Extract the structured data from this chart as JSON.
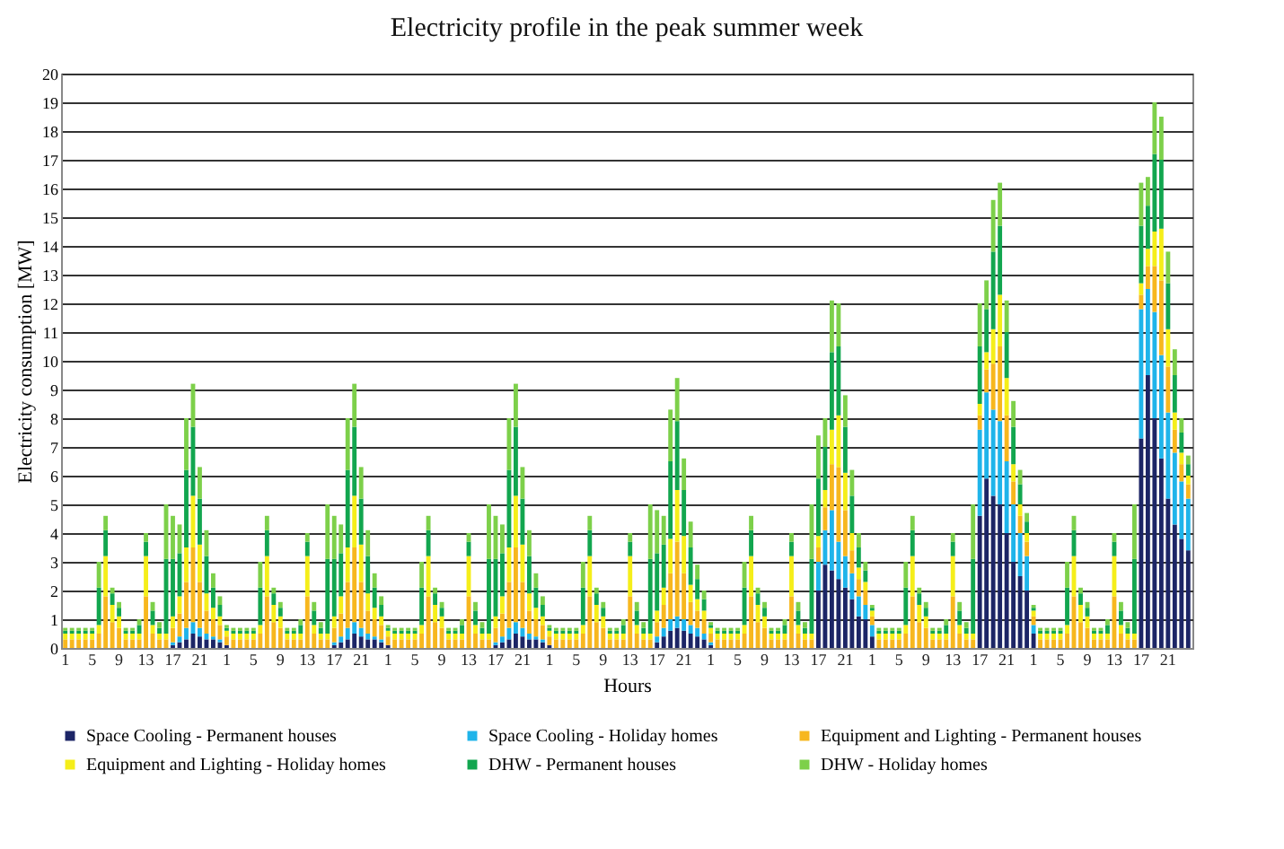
{
  "chart_data": {
    "type": "bar",
    "stacked": true,
    "title": "Electricity profile in the peak summer week",
    "xlabel": "Hours",
    "ylabel": "Electricity consumption [MW]",
    "categories": [
      "1",
      null,
      null,
      null,
      "5",
      null,
      null,
      null,
      "9",
      null,
      null,
      null,
      "13",
      null,
      null,
      null,
      "17",
      null,
      null,
      null,
      "21",
      null,
      null,
      null,
      "1",
      null,
      null,
      null,
      "5",
      null,
      null,
      null,
      "9",
      null,
      null,
      null,
      "13",
      null,
      null,
      null,
      "17",
      null,
      null,
      null,
      "21",
      null,
      null,
      null,
      "1",
      null,
      null,
      null,
      "5",
      null,
      null,
      null,
      "9",
      null,
      null,
      null,
      "13",
      null,
      null,
      null,
      "17",
      null,
      null,
      null,
      "21",
      null,
      null,
      null,
      "1",
      null,
      null,
      null,
      "5",
      null,
      null,
      null,
      "9",
      null,
      null,
      null,
      "13",
      null,
      null,
      null,
      "17",
      null,
      null,
      null,
      "21",
      null,
      null,
      null,
      "1",
      null,
      null,
      null,
      "5",
      null,
      null,
      null,
      "9",
      null,
      null,
      null,
      "13",
      null,
      null,
      null,
      "17",
      null,
      null,
      null,
      "21",
      null,
      null,
      null,
      "1",
      null,
      null,
      null,
      "5",
      null,
      null,
      null,
      "9",
      null,
      null,
      null,
      "13",
      null,
      null,
      null,
      "17",
      null,
      null,
      null,
      "21",
      null,
      null,
      null,
      "1",
      null,
      null,
      null,
      "5",
      null,
      null,
      null,
      "9",
      null,
      null,
      null,
      "13",
      null,
      null,
      null,
      "17",
      null,
      null,
      null,
      "21",
      null,
      null,
      null
    ],
    "series": [
      {
        "name": "Space Cooling -  Permanent houses",
        "color": "#1c2566",
        "values": [
          0,
          0,
          0,
          0,
          0,
          0,
          0,
          0,
          0,
          0,
          0,
          0,
          0,
          0,
          0,
          0,
          0.1,
          0.2,
          0.3,
          0.5,
          0.4,
          0.3,
          0.3,
          0.2,
          0.1,
          0,
          0,
          0,
          0,
          0,
          0,
          0,
          0,
          0,
          0,
          0,
          0,
          0,
          0,
          0,
          0.1,
          0.2,
          0.3,
          0.5,
          0.4,
          0.3,
          0.3,
          0.2,
          0.1,
          0,
          0,
          0,
          0,
          0,
          0,
          0,
          0,
          0,
          0,
          0,
          0,
          0,
          0,
          0,
          0.1,
          0.2,
          0.3,
          0.5,
          0.4,
          0.3,
          0.3,
          0.2,
          0.1,
          0,
          0,
          0,
          0,
          0,
          0,
          0,
          0,
          0,
          0,
          0,
          0,
          0,
          0,
          0,
          0.2,
          0.4,
          0.6,
          0.7,
          0.6,
          0.5,
          0.4,
          0.3,
          0.1,
          0,
          0,
          0,
          0,
          0,
          0,
          0,
          0,
          0,
          0,
          0,
          0,
          0,
          0,
          0,
          2.0,
          2.9,
          2.7,
          2.4,
          2.1,
          1.7,
          1.1,
          1.0,
          0.4,
          0,
          0,
          0,
          0,
          0,
          0,
          0,
          0,
          0,
          0,
          0,
          0,
          0,
          0,
          0,
          4.6,
          5.9,
          5.3,
          5.0,
          4.0,
          3.0,
          2.5,
          2.0,
          0.5,
          0,
          0,
          0,
          0,
          0,
          0,
          0,
          0,
          0,
          0,
          0,
          0,
          0,
          0,
          0,
          7.3,
          9.5,
          8.0,
          6.6,
          5.2,
          4.3,
          3.8,
          3.4
        ]
      },
      {
        "name": "Space Cooling -  Holiday homes",
        "color": "#1fb4ea",
        "values": [
          0,
          0,
          0,
          0,
          0,
          0,
          0,
          0,
          0,
          0,
          0,
          0,
          0,
          0,
          0,
          0,
          0.1,
          0.2,
          0.4,
          0.4,
          0.3,
          0.2,
          0.1,
          0.1,
          0,
          0,
          0,
          0,
          0,
          0,
          0,
          0,
          0,
          0,
          0,
          0,
          0,
          0,
          0,
          0,
          0.1,
          0.2,
          0.4,
          0.4,
          0.3,
          0.2,
          0.1,
          0.1,
          0,
          0,
          0,
          0,
          0,
          0,
          0,
          0,
          0,
          0,
          0,
          0,
          0,
          0,
          0,
          0,
          0.1,
          0.2,
          0.4,
          0.4,
          0.3,
          0.2,
          0.1,
          0.1,
          0,
          0,
          0,
          0,
          0,
          0,
          0,
          0,
          0,
          0,
          0,
          0,
          0,
          0,
          0,
          0,
          0.2,
          0.3,
          0.4,
          0.4,
          0.4,
          0.3,
          0.3,
          0.2,
          0.1,
          0,
          0,
          0,
          0,
          0,
          0,
          0,
          0,
          0,
          0,
          0,
          0,
          0,
          0,
          0,
          1.0,
          1.2,
          2.1,
          1.3,
          1.1,
          0.9,
          0.7,
          0.5,
          0.4,
          0,
          0,
          0,
          0,
          0,
          0,
          0,
          0,
          0,
          0,
          0,
          0,
          0,
          0,
          0,
          3.0,
          3.0,
          3.0,
          2.9,
          2.5,
          2.0,
          1.5,
          1.2,
          0.3,
          0,
          0,
          0,
          0,
          0,
          0,
          0,
          0,
          0,
          0,
          0,
          0,
          0,
          0,
          0,
          4.5,
          3.0,
          3.7,
          3.6,
          3.0,
          2.5,
          2.0,
          1.8
        ]
      },
      {
        "name": "Equipment and Lighting -  Permanent houses",
        "color": "#f7b71e",
        "values": [
          0.3,
          0.3,
          0.3,
          0.3,
          0.3,
          0.5,
          1.8,
          0.9,
          0.7,
          0.3,
          0.3,
          0.3,
          1.8,
          0.5,
          0.3,
          0.3,
          0.5,
          0.8,
          1.6,
          2.6,
          1.6,
          0.8,
          0.6,
          0.5,
          0.3,
          0.3,
          0.3,
          0.3,
          0.3,
          0.5,
          1.8,
          0.9,
          0.7,
          0.3,
          0.3,
          0.3,
          1.8,
          0.5,
          0.3,
          0.3,
          0.5,
          0.8,
          1.6,
          2.6,
          1.6,
          0.8,
          0.6,
          0.5,
          0.3,
          0.3,
          0.3,
          0.3,
          0.3,
          0.5,
          1.8,
          0.9,
          0.7,
          0.3,
          0.3,
          0.3,
          1.8,
          0.5,
          0.3,
          0.3,
          0.5,
          0.8,
          1.6,
          2.6,
          1.6,
          0.8,
          0.6,
          0.5,
          0.3,
          0.3,
          0.3,
          0.3,
          0.3,
          0.5,
          1.8,
          0.9,
          0.7,
          0.3,
          0.3,
          0.3,
          1.8,
          0.5,
          0.3,
          0.3,
          0.5,
          0.8,
          1.6,
          2.6,
          1.6,
          0.8,
          0.6,
          0.5,
          0.3,
          0.3,
          0.3,
          0.3,
          0.3,
          0.5,
          1.8,
          0.9,
          0.7,
          0.3,
          0.3,
          0.3,
          1.8,
          0.5,
          0.3,
          0.3,
          0.5,
          0.8,
          1.6,
          2.6,
          1.6,
          0.8,
          0.6,
          0.5,
          0.3,
          0.3,
          0.3,
          0.3,
          0.3,
          0.5,
          1.8,
          0.9,
          0.7,
          0.3,
          0.3,
          0.3,
          1.8,
          0.5,
          0.3,
          0.3,
          0.5,
          0.8,
          1.6,
          2.6,
          1.6,
          0.8,
          0.6,
          0.5,
          0.3,
          0.3,
          0.3,
          0.3,
          0.3,
          0.5,
          1.8,
          0.9,
          0.7,
          0.3,
          0.3,
          0.3,
          1.8,
          0.5,
          0.3,
          0.3,
          0.5,
          0.8,
          1.6,
          2.6,
          1.6,
          0.8,
          0.6,
          0.5
        ]
      },
      {
        "name": "Equipment and Lighting -  Holiday homes",
        "color": "#f5ee1a",
        "values": [
          0.2,
          0.2,
          0.2,
          0.2,
          0.2,
          0.3,
          1.4,
          0.6,
          0.4,
          0.2,
          0.2,
          0.2,
          1.4,
          0.3,
          0.2,
          0.2,
          0.4,
          0.6,
          1.2,
          1.8,
          1.3,
          0.6,
          0.4,
          0.3,
          0.2,
          0.2,
          0.2,
          0.2,
          0.2,
          0.3,
          1.4,
          0.6,
          0.4,
          0.2,
          0.2,
          0.2,
          1.4,
          0.3,
          0.2,
          0.2,
          0.4,
          0.6,
          1.2,
          1.8,
          1.3,
          0.6,
          0.4,
          0.3,
          0.2,
          0.2,
          0.2,
          0.2,
          0.2,
          0.3,
          1.4,
          0.6,
          0.4,
          0.2,
          0.2,
          0.2,
          1.4,
          0.3,
          0.2,
          0.2,
          0.4,
          0.6,
          1.2,
          1.8,
          1.3,
          0.6,
          0.4,
          0.3,
          0.2,
          0.2,
          0.2,
          0.2,
          0.2,
          0.3,
          1.4,
          0.6,
          0.4,
          0.2,
          0.2,
          0.2,
          1.4,
          0.3,
          0.2,
          0.2,
          0.4,
          0.6,
          1.2,
          1.8,
          1.3,
          0.6,
          0.4,
          0.3,
          0.2,
          0.2,
          0.2,
          0.2,
          0.2,
          0.3,
          1.4,
          0.6,
          0.4,
          0.2,
          0.2,
          0.2,
          1.4,
          0.3,
          0.2,
          0.2,
          0.4,
          0.6,
          1.2,
          1.8,
          1.3,
          0.6,
          0.4,
          0.3,
          0.2,
          0.2,
          0.2,
          0.2,
          0.2,
          0.3,
          1.4,
          0.6,
          0.4,
          0.2,
          0.2,
          0.2,
          1.4,
          0.3,
          0.2,
          0.2,
          0.4,
          0.6,
          1.2,
          1.8,
          1.3,
          0.6,
          0.4,
          0.3,
          0.2,
          0.2,
          0.2,
          0.2,
          0.2,
          0.3,
          1.4,
          0.6,
          0.4,
          0.2,
          0.2,
          0.2,
          1.4,
          0.3,
          0.2,
          0.2,
          0.4,
          0.6,
          1.2,
          1.8,
          1.3,
          0.6,
          0.4,
          0.3
        ]
      },
      {
        "name": "DHW -  Permanent houses",
        "color": "#12a64f",
        "values": [
          0.1,
          0.1,
          0.1,
          0.1,
          0.1,
          1.3,
          0.9,
          0.4,
          0.3,
          0.1,
          0.1,
          0.3,
          0.5,
          0.5,
          0.2,
          2.6,
          2.0,
          1.5,
          2.7,
          2.4,
          1.6,
          1.3,
          0.7,
          0.4,
          0.1,
          0.1,
          0.1,
          0.1,
          0.1,
          1.3,
          0.9,
          0.4,
          0.3,
          0.1,
          0.1,
          0.3,
          0.5,
          0.5,
          0.2,
          2.6,
          2.0,
          1.5,
          2.7,
          2.4,
          1.6,
          1.3,
          0.7,
          0.4,
          0.1,
          0.1,
          0.1,
          0.1,
          0.1,
          1.3,
          0.9,
          0.4,
          0.3,
          0.1,
          0.1,
          0.3,
          0.5,
          0.5,
          0.2,
          2.6,
          2.0,
          1.5,
          2.7,
          2.4,
          1.6,
          1.3,
          0.7,
          0.4,
          0.1,
          0.1,
          0.1,
          0.1,
          0.1,
          1.3,
          0.9,
          0.4,
          0.3,
          0.1,
          0.1,
          0.3,
          0.5,
          0.5,
          0.2,
          2.6,
          2.0,
          1.5,
          2.7,
          2.4,
          1.6,
          1.3,
          0.7,
          0.4,
          0.1,
          0.1,
          0.1,
          0.1,
          0.1,
          1.3,
          0.9,
          0.4,
          0.3,
          0.1,
          0.1,
          0.3,
          0.5,
          0.5,
          0.2,
          2.6,
          2.0,
          1.5,
          2.7,
          2.4,
          1.6,
          1.3,
          0.7,
          0.4,
          0.1,
          0.1,
          0.1,
          0.1,
          0.1,
          1.3,
          0.9,
          0.4,
          0.3,
          0.1,
          0.1,
          0.3,
          0.5,
          0.5,
          0.2,
          2.6,
          2.0,
          1.5,
          2.7,
          2.4,
          1.6,
          1.3,
          0.7,
          0.4,
          0.1,
          0.1,
          0.1,
          0.1,
          0.1,
          1.3,
          0.9,
          0.4,
          0.3,
          0.1,
          0.1,
          0.3,
          0.5,
          0.5,
          0.2,
          2.6,
          2.0,
          1.5,
          2.7,
          2.4,
          1.6,
          1.3,
          0.7,
          0.4
        ]
      },
      {
        "name": "DHW -  Holiday homes",
        "color": "#7dd04a",
        "values": [
          0.1,
          0.1,
          0.1,
          0.1,
          0.1,
          0.9,
          0.5,
          0.2,
          0.2,
          0.1,
          0.1,
          0.2,
          0.3,
          0.3,
          0.2,
          1.9,
          1.5,
          1.0,
          1.8,
          1.5,
          1.1,
          0.9,
          0.5,
          0.3,
          0.1,
          0.1,
          0.1,
          0.1,
          0.1,
          0.9,
          0.5,
          0.2,
          0.2,
          0.1,
          0.1,
          0.2,
          0.3,
          0.3,
          0.2,
          1.9,
          1.5,
          1.0,
          1.8,
          1.5,
          1.1,
          0.9,
          0.5,
          0.3,
          0.1,
          0.1,
          0.1,
          0.1,
          0.1,
          0.9,
          0.5,
          0.2,
          0.2,
          0.1,
          0.1,
          0.2,
          0.3,
          0.3,
          0.2,
          1.9,
          1.5,
          1.0,
          1.8,
          1.5,
          1.1,
          0.9,
          0.5,
          0.3,
          0.1,
          0.1,
          0.1,
          0.1,
          0.1,
          0.9,
          0.5,
          0.2,
          0.2,
          0.1,
          0.1,
          0.2,
          0.3,
          0.3,
          0.2,
          1.9,
          1.5,
          1.0,
          1.8,
          1.5,
          1.1,
          0.9,
          0.5,
          0.3,
          0.1,
          0.1,
          0.1,
          0.1,
          0.1,
          0.9,
          0.5,
          0.2,
          0.2,
          0.1,
          0.1,
          0.2,
          0.3,
          0.3,
          0.2,
          1.9,
          1.5,
          1.0,
          1.8,
          1.5,
          1.1,
          0.9,
          0.5,
          0.3,
          0.1,
          0.1,
          0.1,
          0.1,
          0.1,
          0.9,
          0.5,
          0.2,
          0.2,
          0.1,
          0.1,
          0.2,
          0.3,
          0.3,
          0.2,
          1.9,
          1.5,
          1.0,
          1.8,
          1.5,
          1.1,
          0.9,
          0.5,
          0.3,
          0.1,
          0.1,
          0.1,
          0.1,
          0.1,
          0.9,
          0.5,
          0.2,
          0.2,
          0.1,
          0.1,
          0.2,
          0.3,
          0.3,
          0.2,
          1.9,
          1.5,
          1.0,
          1.8,
          1.5,
          1.1,
          0.9,
          0.5,
          0.3
        ]
      }
    ],
    "ylim": [
      0,
      20
    ],
    "yticks": [
      0,
      1,
      2,
      3,
      4,
      5,
      6,
      7,
      8,
      9,
      10,
      11,
      12,
      13,
      14,
      15,
      16,
      17,
      18,
      19,
      20
    ],
    "grid": "y",
    "legend": "bottom"
  }
}
